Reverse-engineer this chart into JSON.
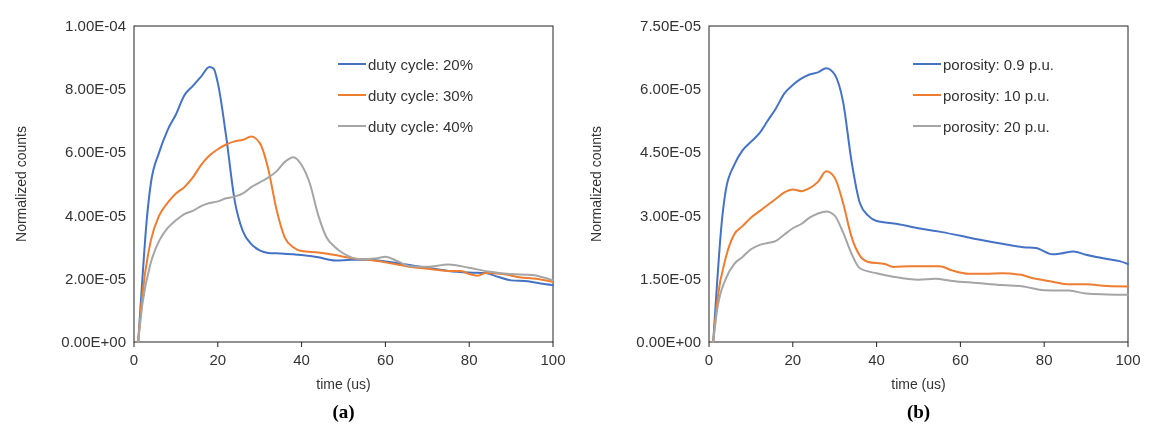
{
  "chart_data": [
    {
      "type": "line",
      "title": "(a)",
      "xlabel": "time (us)",
      "ylabel": "Normalized counts",
      "xlim": [
        0,
        100
      ],
      "xticks": [
        0,
        20,
        40,
        60,
        80,
        100
      ],
      "ylim": [
        0,
        0.0001
      ],
      "yticks": [
        {
          "value": 0,
          "label": "0.00E+00"
        },
        {
          "value": 2e-05,
          "label": "2.00E-05"
        },
        {
          "value": 4e-05,
          "label": "4.00E-05"
        },
        {
          "value": 6e-05,
          "label": "6.00E-05"
        },
        {
          "value": 8e-05,
          "label": "8.00E-05"
        },
        {
          "value": 0.0001,
          "label": "1.00E-04"
        }
      ],
      "legend": "top right",
      "grid": false,
      "marker": "none",
      "line_style": "solid",
      "series": [
        {
          "name": "duty cycle: 20%",
          "color": "#4472c4",
          "x": [
            1,
            2,
            3,
            4,
            6,
            8,
            10,
            12,
            14,
            16,
            18,
            19,
            20,
            22,
            24,
            26,
            28,
            30,
            32,
            35,
            40,
            44,
            48,
            52,
            56,
            60,
            65,
            70,
            75,
            80,
            84,
            86,
            90,
            94,
            97,
            100
          ],
          "values": [
            0,
            2e-05,
            3.8e-05,
            5e-05,
            6e-05,
            6.7e-05,
            7.2e-05,
            7.8e-05,
            8.1e-05,
            8.4e-05,
            8.7e-05,
            8.65e-05,
            8.2e-05,
            6.5e-05,
            4.5e-05,
            3.5e-05,
            3.1e-05,
            2.9e-05,
            2.82e-05,
            2.8e-05,
            2.75e-05,
            2.68e-05,
            2.58e-05,
            2.6e-05,
            2.6e-05,
            2.55e-05,
            2.45e-05,
            2.35e-05,
            2.25e-05,
            2.2e-05,
            2.18e-05,
            2.1e-05,
            1.95e-05,
            1.92e-05,
            1.85e-05,
            1.8e-05
          ]
        },
        {
          "name": "duty cycle: 30%",
          "color": "#ed7d31",
          "x": [
            1,
            2,
            4,
            6,
            8,
            10,
            12,
            14,
            16,
            18,
            20,
            22,
            24,
            26,
            28,
            30,
            32,
            34,
            36,
            38,
            40,
            44,
            48,
            52,
            56,
            60,
            65,
            70,
            75,
            78,
            80,
            82,
            84,
            88,
            92,
            96,
            100
          ],
          "values": [
            0,
            1.5e-05,
            3.2e-05,
            4e-05,
            4.4e-05,
            4.7e-05,
            4.9e-05,
            5.2e-05,
            5.6e-05,
            5.9e-05,
            6.1e-05,
            6.25e-05,
            6.35e-05,
            6.4e-05,
            6.5e-05,
            6.3e-05,
            5.5e-05,
            4.2e-05,
            3.3e-05,
            3e-05,
            2.88e-05,
            2.83e-05,
            2.75e-05,
            2.65e-05,
            2.6e-05,
            2.52e-05,
            2.4e-05,
            2.32e-05,
            2.25e-05,
            2.25e-05,
            2.15e-05,
            2.1e-05,
            2.18e-05,
            2.15e-05,
            2.05e-05,
            2e-05,
            1.9e-05
          ]
        },
        {
          "name": "duty cycle: 40%",
          "color": "#a5a5a5",
          "x": [
            1,
            2,
            4,
            6,
            8,
            10,
            12,
            14,
            16,
            18,
            20,
            22,
            24,
            26,
            28,
            30,
            32,
            34,
            36,
            38,
            40,
            42,
            44,
            46,
            48,
            50,
            54,
            58,
            60,
            63,
            66,
            70,
            75,
            80,
            85,
            90,
            95,
            100
          ],
          "values": [
            0,
            1.2e-05,
            2.5e-05,
            3.2e-05,
            3.6e-05,
            3.85e-05,
            4.05e-05,
            4.15e-05,
            4.3e-05,
            4.4e-05,
            4.45e-05,
            4.55e-05,
            4.6e-05,
            4.7e-05,
            4.9e-05,
            5.05e-05,
            5.2e-05,
            5.4e-05,
            5.7e-05,
            5.85e-05,
            5.6e-05,
            5e-05,
            4e-05,
            3.3e-05,
            3e-05,
            2.8e-05,
            2.62e-05,
            2.65e-05,
            2.7e-05,
            2.55e-05,
            2.4e-05,
            2.38e-05,
            2.45e-05,
            2.35e-05,
            2.22e-05,
            2.15e-05,
            2.12e-05,
            1.95e-05
          ]
        }
      ]
    },
    {
      "type": "line",
      "title": "(b)",
      "xlabel": "time (us)",
      "ylabel": "Normalized counts",
      "xlim": [
        0,
        100
      ],
      "xticks": [
        0,
        20,
        40,
        60,
        80,
        100
      ],
      "ylim": [
        0,
        7.5e-05
      ],
      "yticks": [
        {
          "value": 0,
          "label": "0.00E+00"
        },
        {
          "value": 1.5e-05,
          "label": "1.50E-05"
        },
        {
          "value": 3e-05,
          "label": "3.00E-05"
        },
        {
          "value": 4.5e-05,
          "label": "4.50E-05"
        },
        {
          "value": 6e-05,
          "label": "6.00E-05"
        },
        {
          "value": 7.5e-05,
          "label": "7.50E-05"
        }
      ],
      "legend": "top right",
      "grid": false,
      "marker": "none",
      "line_style": "solid",
      "series": [
        {
          "name": "porosity: 0.9 p.u.",
          "color": "#4472c4",
          "x": [
            1,
            2,
            3,
            4,
            6,
            8,
            10,
            12,
            14,
            16,
            18,
            20,
            22,
            24,
            26,
            28,
            30,
            32,
            34,
            36,
            38,
            40,
            45,
            50,
            55,
            60,
            65,
            70,
            75,
            78,
            82,
            84,
            87,
            90,
            95,
            98,
            100
          ],
          "values": [
            0,
            1.5e-05,
            2.8e-05,
            3.6e-05,
            4.2e-05,
            4.55e-05,
            4.75e-05,
            4.95e-05,
            5.25e-05,
            5.55e-05,
            5.9e-05,
            6.1e-05,
            6.25e-05,
            6.35e-05,
            6.4e-05,
            6.5e-05,
            6.35e-05,
            5.7e-05,
            4.3e-05,
            3.3e-05,
            3e-05,
            2.87e-05,
            2.8e-05,
            2.7e-05,
            2.62e-05,
            2.52e-05,
            2.42e-05,
            2.33e-05,
            2.25e-05,
            2.23e-05,
            2.08e-05,
            2.1e-05,
            2.15e-05,
            2.07e-05,
            1.97e-05,
            1.92e-05,
            1.85e-05
          ]
        },
        {
          "name": "porosity: 10 p.u.",
          "color": "#ed7d31",
          "x": [
            1,
            2,
            4,
            6,
            8,
            10,
            12,
            14,
            16,
            18,
            20,
            22,
            24,
            26,
            28,
            30,
            32,
            34,
            36,
            38,
            42,
            44,
            48,
            52,
            55,
            58,
            62,
            66,
            70,
            74,
            78,
            82,
            86,
            90,
            95,
            100
          ],
          "values": [
            0,
            1e-05,
            2e-05,
            2.55e-05,
            2.75e-05,
            2.95e-05,
            3.1e-05,
            3.25e-05,
            3.4e-05,
            3.55e-05,
            3.62e-05,
            3.58e-05,
            3.65e-05,
            3.8e-05,
            4.05e-05,
            3.9e-05,
            3.3e-05,
            2.5e-05,
            2.05e-05,
            1.9e-05,
            1.85e-05,
            1.78e-05,
            1.8e-05,
            1.8e-05,
            1.8e-05,
            1.7e-05,
            1.62e-05,
            1.62e-05,
            1.63e-05,
            1.6e-05,
            1.5e-05,
            1.43e-05,
            1.37e-05,
            1.37e-05,
            1.33e-05,
            1.32e-05
          ]
        },
        {
          "name": "porosity: 20 p.u.",
          "color": "#a5a5a5",
          "x": [
            1,
            2,
            4,
            6,
            8,
            10,
            12,
            14,
            16,
            18,
            20,
            22,
            24,
            26,
            28,
            30,
            32,
            34,
            36,
            40,
            44,
            50,
            54,
            58,
            64,
            70,
            75,
            80,
            86,
            90,
            95,
            100
          ],
          "values": [
            0,
            8e-06,
            1.5e-05,
            1.85e-05,
            2.02e-05,
            2.2e-05,
            2.3e-05,
            2.35e-05,
            2.4e-05,
            2.55e-05,
            2.7e-05,
            2.8e-05,
            2.95e-05,
            3.05e-05,
            3.1e-05,
            3e-05,
            2.6e-05,
            2.1e-05,
            1.75e-05,
            1.63e-05,
            1.55e-05,
            1.48e-05,
            1.5e-05,
            1.45e-05,
            1.4e-05,
            1.35e-05,
            1.32e-05,
            1.23e-05,
            1.22e-05,
            1.15e-05,
            1.13e-05,
            1.12e-05
          ]
        }
      ]
    }
  ]
}
